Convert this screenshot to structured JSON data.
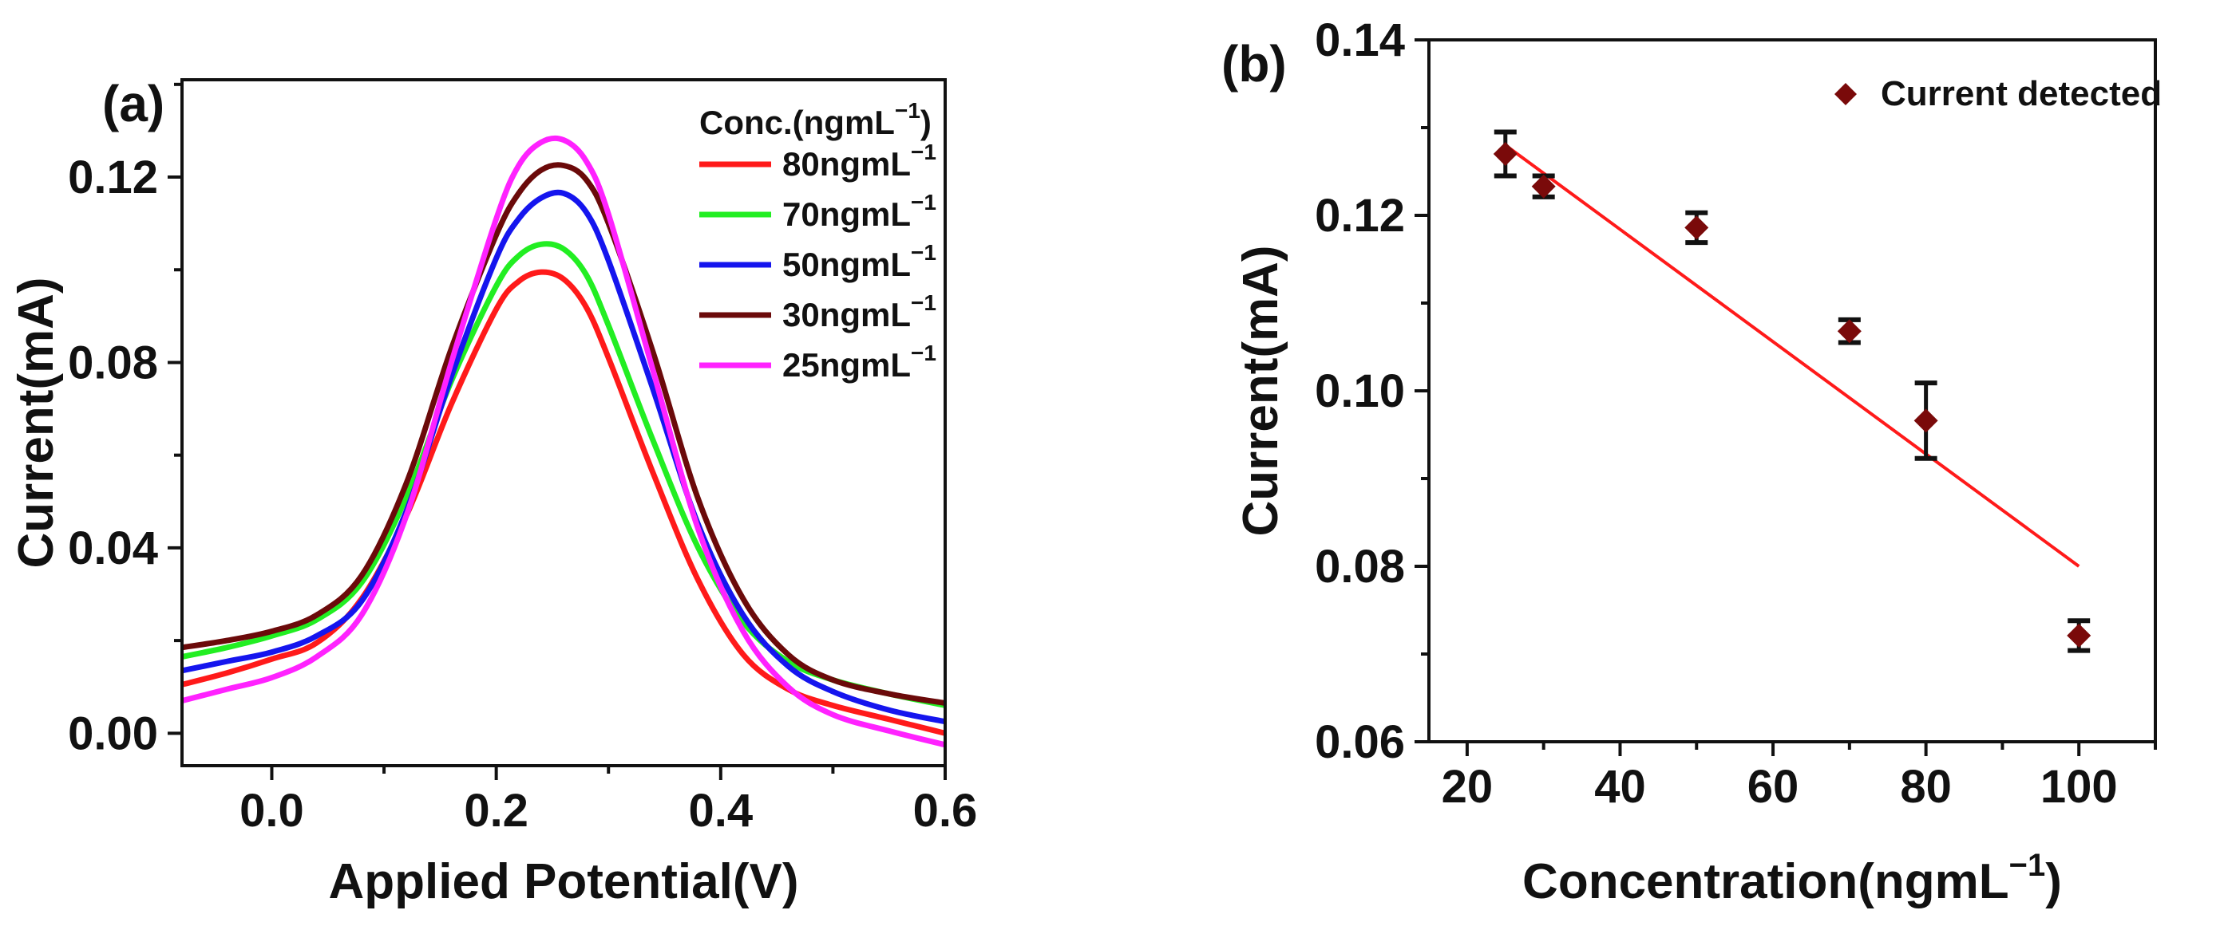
{
  "chart_data": [
    {
      "type": "line",
      "panel_label": "(a)",
      "xlabel": "Applied Potential(V)",
      "ylabel": "Current(mA)",
      "xlim": [
        -0.08,
        0.6
      ],
      "ylim": [
        -0.007,
        0.141
      ],
      "xticks": [
        0.0,
        0.2,
        0.4,
        0.6
      ],
      "xtick_labels": [
        "0.0",
        "0.2",
        "0.4",
        "0.6"
      ],
      "yticks": [
        0.0,
        0.04,
        0.08,
        0.12
      ],
      "ytick_labels": [
        "0.00",
        "0.04",
        "0.08",
        "0.12"
      ],
      "legend_title": "Conc.(ngmL",
      "legend_title_sup": "−1",
      "legend_title_close": ")",
      "legend_placement": "top-right",
      "unit_sup": "−1",
      "x": [
        -0.08,
        -0.04,
        0.0,
        0.04,
        0.08,
        0.12,
        0.16,
        0.2,
        0.22,
        0.24,
        0.26,
        0.28,
        0.3,
        0.34,
        0.38,
        0.42,
        0.46,
        0.5,
        0.55,
        0.6
      ],
      "series": [
        {
          "name": "80ngmL",
          "color": "#ff1a1a",
          "values": [
            0.0105,
            0.013,
            0.016,
            0.0195,
            0.029,
            0.047,
            0.071,
            0.0915,
            0.0975,
            0.0995,
            0.098,
            0.092,
            0.081,
            0.056,
            0.033,
            0.017,
            0.0095,
            0.006,
            0.003,
            0.0
          ]
        },
        {
          "name": "70ngmL",
          "color": "#22ee22",
          "values": [
            0.0165,
            0.0185,
            0.021,
            0.0245,
            0.0325,
            0.051,
            0.076,
            0.0965,
            0.103,
            0.1055,
            0.1045,
            0.099,
            0.088,
            0.063,
            0.04,
            0.024,
            0.0155,
            0.0115,
            0.0085,
            0.006
          ]
        },
        {
          "name": "50ngmL",
          "color": "#1515ee",
          "values": [
            0.0135,
            0.0155,
            0.0175,
            0.021,
            0.0285,
            0.048,
            0.077,
            0.1025,
            0.111,
            0.1155,
            0.1165,
            0.1125,
            0.102,
            0.074,
            0.045,
            0.0255,
            0.0145,
            0.009,
            0.005,
            0.0025
          ]
        },
        {
          "name": "30ngmL",
          "color": "#6b0a0a",
          "values": [
            0.0185,
            0.02,
            0.022,
            0.0255,
            0.034,
            0.054,
            0.083,
            0.1075,
            0.1165,
            0.1215,
            0.1225,
            0.1195,
            0.11,
            0.082,
            0.0505,
            0.029,
            0.017,
            0.0115,
            0.0085,
            0.0065
          ]
        },
        {
          "name": "25ngmL",
          "color": "#ff22ff",
          "values": [
            0.007,
            0.0095,
            0.012,
            0.0165,
            0.0255,
            0.047,
            0.08,
            0.111,
            0.1225,
            0.1275,
            0.128,
            0.1235,
            0.112,
            0.078,
            0.044,
            0.022,
            0.01,
            0.004,
            0.0005,
            -0.0025
          ]
        }
      ]
    },
    {
      "type": "scatter",
      "panel_label": "(b)",
      "xlabel": "Concentration(ngmL",
      "xlabel_sup": "−1",
      "xlabel_close": ")",
      "ylabel": "Current(mA)",
      "xlim": [
        15,
        110
      ],
      "ylim": [
        0.06,
        0.14
      ],
      "xticks": [
        20,
        40,
        60,
        80,
        100
      ],
      "xtick_labels": [
        "20",
        "40",
        "60",
        "80",
        "100"
      ],
      "yticks": [
        0.06,
        0.08,
        0.1,
        0.12,
        0.14
      ],
      "ytick_labels": [
        "0.06",
        "0.08",
        "0.10",
        "0.12",
        "0.14"
      ],
      "legend_placement": "top-right",
      "series": [
        {
          "name": "Current detected",
          "color": "#7a0a0a",
          "x": [
            25,
            30,
            50,
            70,
            80,
            100
          ],
          "y": [
            0.127,
            0.1233,
            0.1186,
            0.1068,
            0.0966,
            0.0721
          ],
          "error": [
            0.0025,
            0.0012,
            0.0017,
            0.0013,
            0.0043,
            0.0017
          ]
        }
      ],
      "fit_line": {
        "color": "#ff1a1a",
        "x": [
          25,
          100
        ],
        "y": [
          0.128,
          0.08
        ]
      }
    }
  ]
}
